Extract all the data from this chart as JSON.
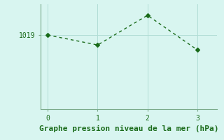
{
  "x": [
    0,
    1,
    2,
    3
  ],
  "y": [
    1019.0,
    1018.2,
    1020.6,
    1017.8
  ],
  "line_color": "#1a6b1a",
  "bg_color": "#d8f5f0",
  "xlabel": "Graphe pression niveau de la mer (hPa)",
  "ytick_labels": [
    "1019"
  ],
  "ytick_values": [
    1019.0
  ],
  "xlim": [
    -0.15,
    3.4
  ],
  "ylim": [
    1013.0,
    1021.5
  ],
  "xticks": [
    0,
    1,
    2,
    3
  ],
  "marker": "D",
  "marker_size": 3,
  "line_width": 1.0,
  "linestyle": "--",
  "xlabel_fontsize": 8,
  "tick_fontsize": 7,
  "grid_color": "#b0ddd5",
  "spine_color": "#7aaa8a",
  "axis_color": "#5a8a6a"
}
